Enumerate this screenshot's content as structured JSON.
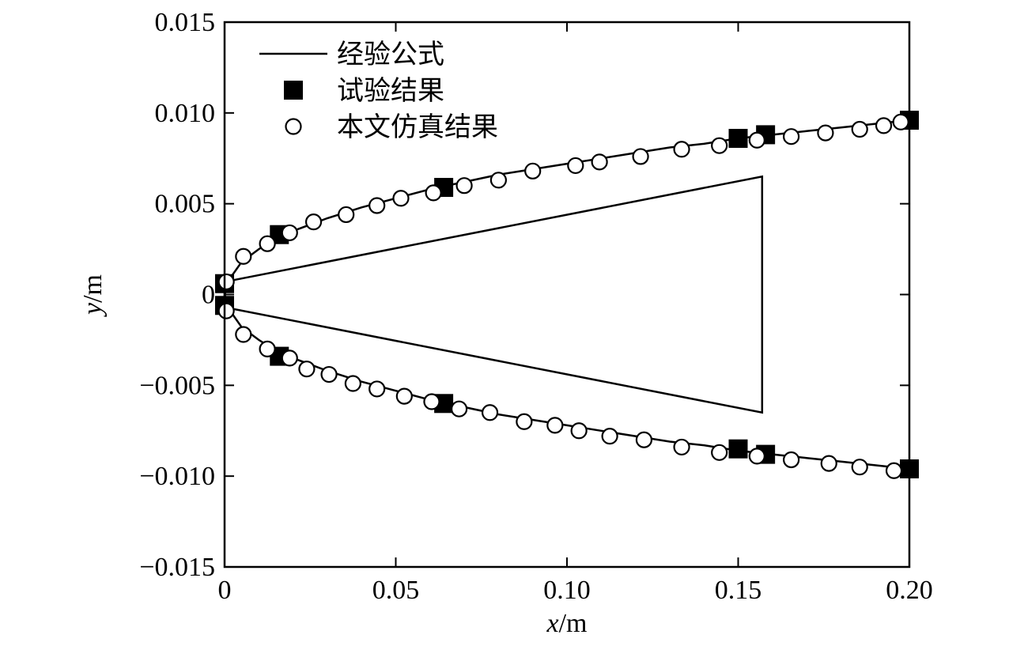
{
  "chart_data": {
    "type": "line",
    "xlabel_var": "x",
    "xlabel_unit": "/m",
    "ylabel_var": "y",
    "ylabel_unit": "/m",
    "xlim": [
      0,
      0.2
    ],
    "ylim": [
      -0.015,
      0.015
    ],
    "x_ticks": [
      0,
      0.05,
      0.1,
      0.15,
      0.2
    ],
    "x_tick_labels": [
      "0",
      "0.05",
      "0.10",
      "0.15",
      "0.20"
    ],
    "y_ticks": [
      0.015,
      0.01,
      0.005,
      0,
      -0.005,
      -0.01,
      -0.015
    ],
    "y_tick_labels": [
      "0.015",
      "0.010",
      "0.005",
      "0",
      "−0.005",
      "−0.010",
      "−0.015"
    ],
    "grid": false,
    "legend_position": "top-left",
    "legend": [
      {
        "label": "经验公式",
        "marker": "line"
      },
      {
        "label": "试验结果",
        "marker": "filled-square"
      },
      {
        "label": "本文仿真结果",
        "marker": "open-circle"
      }
    ],
    "series": [
      {
        "name": "经验公式",
        "style": "line",
        "upper": {
          "x": [
            0,
            0.002,
            0.005,
            0.01,
            0.015,
            0.02,
            0.03,
            0.04,
            0.05,
            0.06,
            0.07,
            0.08,
            0.09,
            0.1,
            0.11,
            0.12,
            0.13,
            0.14,
            0.15,
            0.16,
            0.17,
            0.18,
            0.19,
            0.2
          ],
          "y": [
            0,
            0.001,
            0.0018,
            0.0025,
            0.0031,
            0.0035,
            0.0042,
            0.0048,
            0.0053,
            0.0058,
            0.0062,
            0.0066,
            0.0069,
            0.0072,
            0.0075,
            0.0078,
            0.0081,
            0.0083,
            0.0086,
            0.0088,
            0.009,
            0.0092,
            0.0094,
            0.0096
          ]
        },
        "lower": {
          "x": [
            0,
            0.002,
            0.005,
            0.01,
            0.015,
            0.02,
            0.03,
            0.04,
            0.05,
            0.06,
            0.07,
            0.08,
            0.09,
            0.1,
            0.11,
            0.12,
            0.13,
            0.14,
            0.15,
            0.16,
            0.17,
            0.18,
            0.19,
            0.2
          ],
          "y": [
            0,
            -0.001,
            -0.0018,
            -0.0025,
            -0.0031,
            -0.0035,
            -0.0042,
            -0.0048,
            -0.0053,
            -0.0058,
            -0.0062,
            -0.0066,
            -0.0069,
            -0.0072,
            -0.0075,
            -0.0078,
            -0.0081,
            -0.0083,
            -0.0086,
            -0.0088,
            -0.009,
            -0.0092,
            -0.0094,
            -0.0096
          ]
        }
      },
      {
        "name": "试验结果",
        "style": "filled-square",
        "x": [
          0,
          0.016,
          0.064,
          0.15,
          0.158,
          0.2,
          0,
          0.016,
          0.064,
          0.15,
          0.158,
          0.2
        ],
        "y": [
          0.0006,
          0.0033,
          0.0059,
          0.0086,
          0.0088,
          0.0096,
          -0.0006,
          -0.0034,
          -0.006,
          -0.0085,
          -0.0088,
          -0.0096
        ]
      },
      {
        "name": "本文仿真结果",
        "style": "open-circle",
        "x": [
          0.0005,
          0.0055,
          0.0125,
          0.019,
          0.026,
          0.0355,
          0.0445,
          0.0515,
          0.061,
          0.07,
          0.08,
          0.09,
          0.1025,
          0.1095,
          0.1215,
          0.1335,
          0.1445,
          0.1555,
          0.1655,
          0.1755,
          0.1855,
          0.1925,
          0.1975,
          0.0005,
          0.0055,
          0.0125,
          0.019,
          0.024,
          0.0305,
          0.0375,
          0.0445,
          0.0525,
          0.0605,
          0.0685,
          0.0775,
          0.0875,
          0.0965,
          0.1035,
          0.1125,
          0.1225,
          0.1335,
          0.1445,
          0.1555,
          0.1655,
          0.1765,
          0.1855,
          0.1955
        ],
        "y": [
          0.0007,
          0.0021,
          0.0028,
          0.0034,
          0.004,
          0.0044,
          0.0049,
          0.0053,
          0.0056,
          0.006,
          0.0063,
          0.0068,
          0.0071,
          0.0073,
          0.0076,
          0.008,
          0.0082,
          0.0085,
          0.0087,
          0.0089,
          0.0091,
          0.0093,
          0.0095,
          -0.0009,
          -0.0022,
          -0.003,
          -0.0035,
          -0.0041,
          -0.0044,
          -0.0049,
          -0.0052,
          -0.0056,
          -0.0059,
          -0.0063,
          -0.0065,
          -0.007,
          -0.0072,
          -0.0075,
          -0.0078,
          -0.008,
          -0.0084,
          -0.0087,
          -0.0089,
          -0.0091,
          -0.0093,
          -0.0095,
          -0.0097
        ]
      }
    ],
    "annotations": [
      {
        "name": "cone-outline",
        "x": [
          0,
          0.157,
          0.157,
          0
        ],
        "y": [
          0.0007,
          0.0065,
          -0.0065,
          -0.0007
        ]
      }
    ]
  }
}
